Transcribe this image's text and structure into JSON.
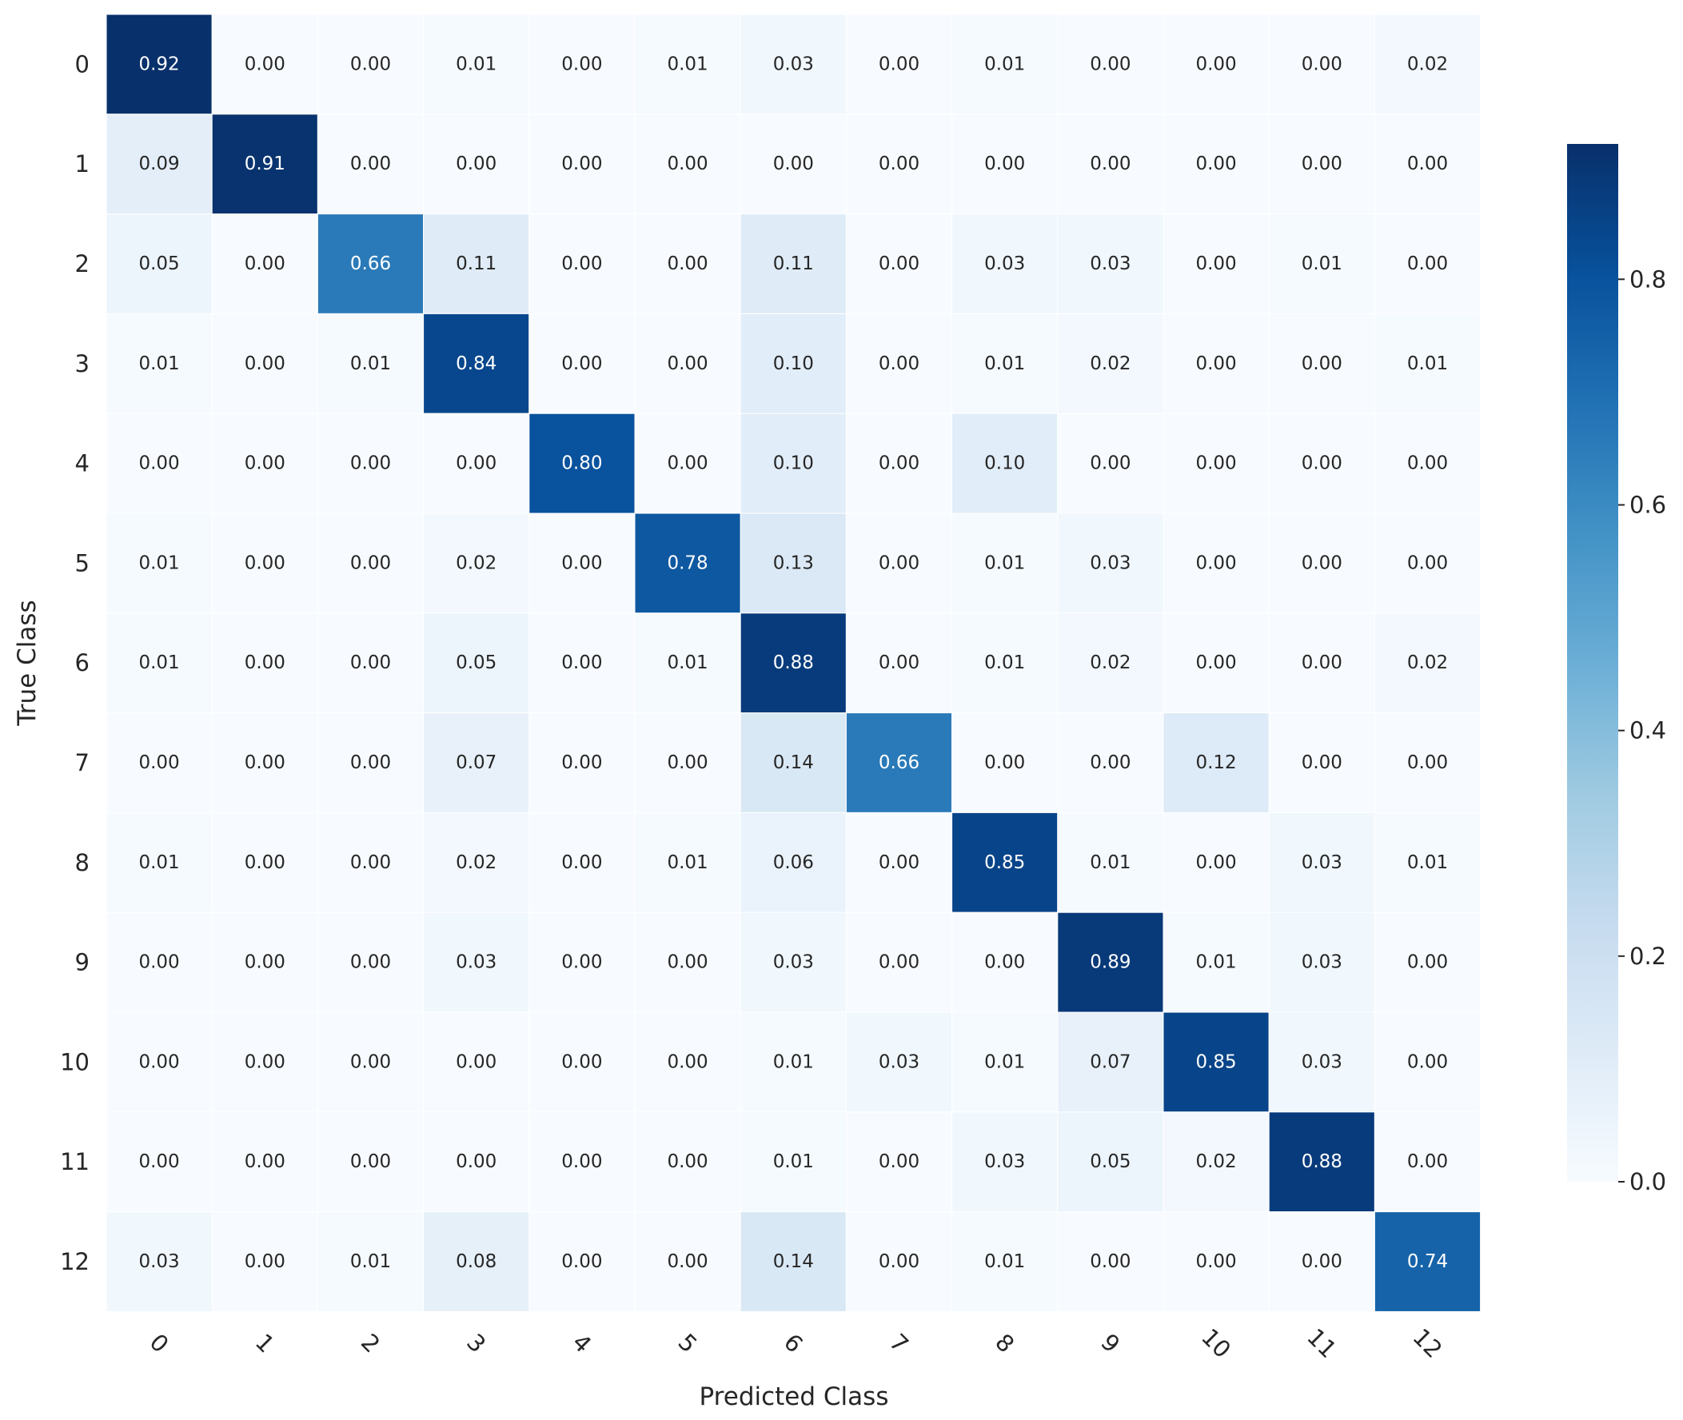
{
  "chart_data": {
    "type": "heatmap",
    "xlabel": "Predicted Class",
    "ylabel": "True Class",
    "x_categories": [
      "0",
      "1",
      "2",
      "3",
      "4",
      "5",
      "6",
      "7",
      "8",
      "9",
      "10",
      "11",
      "12"
    ],
    "y_categories": [
      "0",
      "1",
      "2",
      "3",
      "4",
      "5",
      "6",
      "7",
      "8",
      "9",
      "10",
      "11",
      "12"
    ],
    "values": [
      [
        0.92,
        0.0,
        0.0,
        0.01,
        0.0,
        0.01,
        0.03,
        0.0,
        0.01,
        0.0,
        0.0,
        0.0,
        0.02
      ],
      [
        0.09,
        0.91,
        0.0,
        0.0,
        0.0,
        0.0,
        0.0,
        0.0,
        0.0,
        0.0,
        0.0,
        0.0,
        0.0
      ],
      [
        0.05,
        0.0,
        0.66,
        0.11,
        0.0,
        0.0,
        0.11,
        0.0,
        0.03,
        0.03,
        0.0,
        0.01,
        0.0
      ],
      [
        0.01,
        0.0,
        0.01,
        0.84,
        0.0,
        0.0,
        0.1,
        0.0,
        0.01,
        0.02,
        0.0,
        0.0,
        0.01
      ],
      [
        0.0,
        0.0,
        0.0,
        0.0,
        0.8,
        0.0,
        0.1,
        0.0,
        0.1,
        0.0,
        0.0,
        0.0,
        0.0
      ],
      [
        0.01,
        0.0,
        0.0,
        0.02,
        0.0,
        0.78,
        0.13,
        0.0,
        0.01,
        0.03,
        0.0,
        0.0,
        0.0
      ],
      [
        0.01,
        0.0,
        0.0,
        0.05,
        0.0,
        0.01,
        0.88,
        0.0,
        0.01,
        0.02,
        0.0,
        0.0,
        0.02
      ],
      [
        0.0,
        0.0,
        0.0,
        0.07,
        0.0,
        0.0,
        0.14,
        0.66,
        0.0,
        0.0,
        0.12,
        0.0,
        0.0
      ],
      [
        0.01,
        0.0,
        0.0,
        0.02,
        0.0,
        0.01,
        0.06,
        0.0,
        0.85,
        0.01,
        0.0,
        0.03,
        0.01
      ],
      [
        0.0,
        0.0,
        0.0,
        0.03,
        0.0,
        0.0,
        0.03,
        0.0,
        0.0,
        0.89,
        0.01,
        0.03,
        0.0
      ],
      [
        0.0,
        0.0,
        0.0,
        0.0,
        0.0,
        0.0,
        0.01,
        0.03,
        0.01,
        0.07,
        0.85,
        0.03,
        0.0
      ],
      [
        0.0,
        0.0,
        0.0,
        0.0,
        0.0,
        0.0,
        0.01,
        0.0,
        0.03,
        0.05,
        0.02,
        0.88,
        0.0
      ],
      [
        0.03,
        0.0,
        0.01,
        0.08,
        0.0,
        0.0,
        0.14,
        0.0,
        0.01,
        0.0,
        0.0,
        0.0,
        0.74
      ]
    ],
    "value_format": "0.00",
    "colormap": "Blues",
    "colorbar": {
      "range": [
        0.0,
        0.92
      ],
      "ticks": [
        0.0,
        0.2,
        0.4,
        0.6,
        0.8
      ],
      "tick_labels": [
        "0.0",
        "0.2",
        "0.4",
        "0.6",
        "0.8"
      ]
    }
  }
}
